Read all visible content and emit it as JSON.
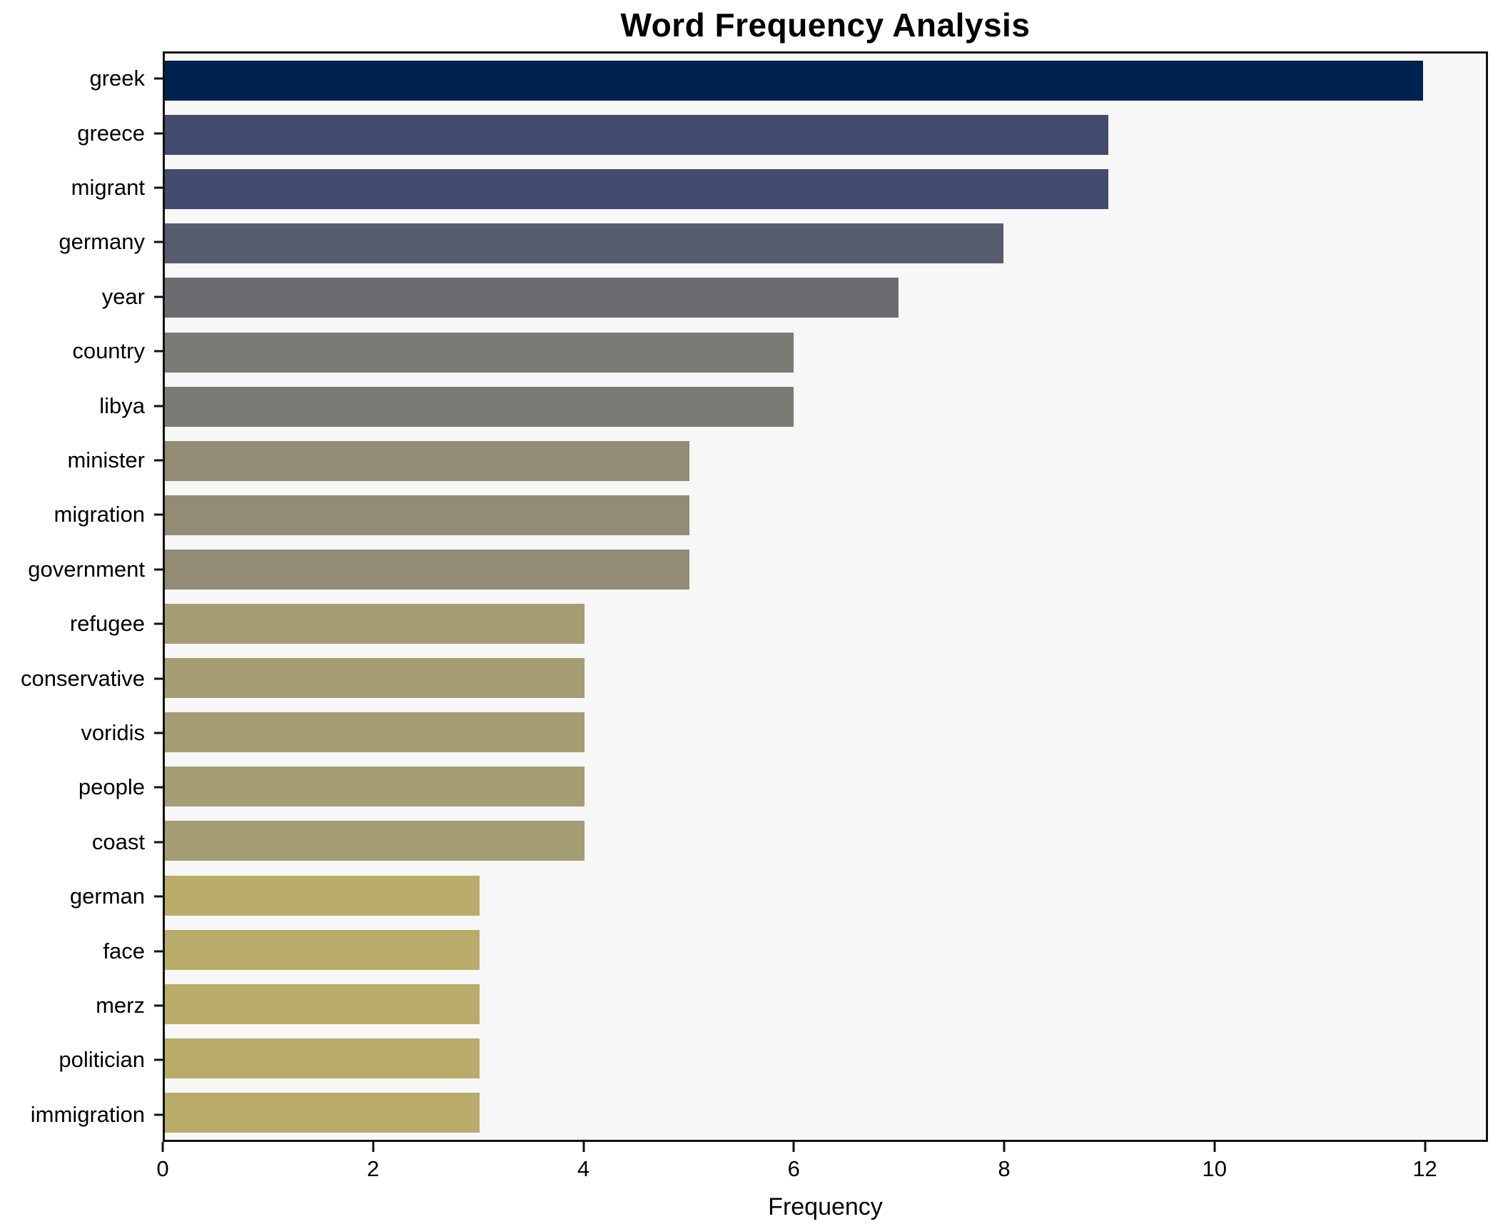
{
  "chart_data": {
    "type": "bar",
    "orientation": "horizontal",
    "title": "Word Frequency Analysis",
    "xlabel": "Frequency",
    "ylabel": "",
    "categories": [
      "greek",
      "greece",
      "migrant",
      "germany",
      "year",
      "country",
      "libya",
      "minister",
      "migration",
      "government",
      "refugee",
      "conservative",
      "voridis",
      "people",
      "coast",
      "german",
      "face",
      "merz",
      "politician",
      "immigration"
    ],
    "values": [
      12,
      9,
      9,
      8,
      7,
      6,
      6,
      5,
      5,
      5,
      4,
      4,
      4,
      4,
      4,
      3,
      3,
      3,
      3,
      3
    ],
    "bar_colors": [
      "#00224e",
      "#434b6e",
      "#434b6e",
      "#565c6d",
      "#6b6b6f",
      "#7b7a74",
      "#7b7a74",
      "#928c76",
      "#928c76",
      "#928c76",
      "#a59d73",
      "#a59d73",
      "#a59d73",
      "#a59d73",
      "#a59d73",
      "#b9ac6a",
      "#b9ac6a",
      "#b9ac6a",
      "#b9ac6a",
      "#b9ac6a"
    ],
    "xlim": [
      0,
      12.6
    ],
    "xticks": [
      0,
      2,
      4,
      6,
      8,
      10,
      12
    ],
    "grid": false,
    "legend_position": "none",
    "plot_background": "#f7f7f7",
    "figure_background": "#ffffff",
    "spine_color": "#111111"
  }
}
